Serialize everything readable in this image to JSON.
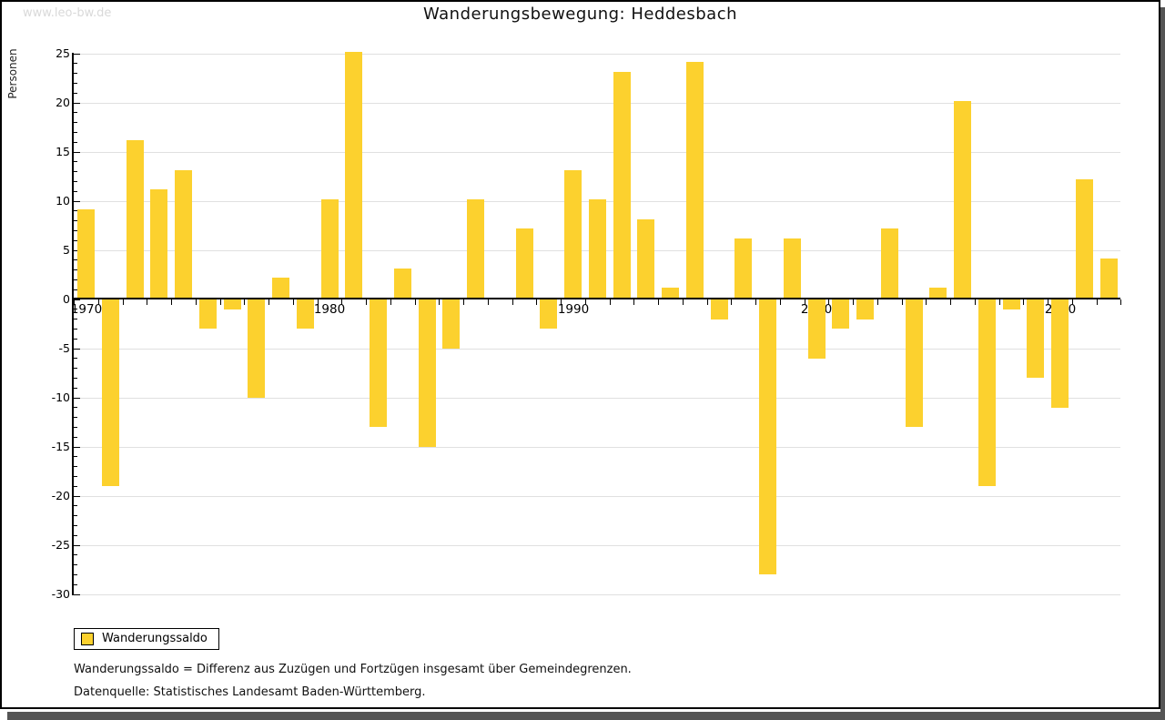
{
  "watermark": "www.leo-bw.de",
  "title": "Wanderungsbewegung: Heddesbach",
  "legend": {
    "label": "Wanderungssaldo"
  },
  "notes": {
    "definition": "Wanderungssaldo = Differenz aus Zuzügen und Fortzügen insgesamt über Gemeindegrenzen.",
    "source": "Datenquelle: Statistisches Landesamt Baden-Württemberg."
  },
  "chart_data": {
    "type": "bar",
    "title": "Wanderungsbewegung: Heddesbach",
    "ylabel": "Personen",
    "xlabel": "",
    "x": [
      1970,
      1971,
      1972,
      1973,
      1974,
      1975,
      1976,
      1977,
      1978,
      1979,
      1980,
      1981,
      1982,
      1983,
      1984,
      1985,
      1986,
      1987,
      1988,
      1989,
      1990,
      1991,
      1992,
      1993,
      1994,
      1995,
      1996,
      1997,
      1998,
      1999,
      2000,
      2001,
      2002,
      2003,
      2004,
      2005,
      2006,
      2007,
      2008,
      2009,
      2010,
      2011,
      2012
    ],
    "series": [
      {
        "name": "Wanderungssaldo",
        "values": [
          9,
          -19,
          16,
          11,
          13,
          -3,
          -1,
          -10,
          2,
          -3,
          10,
          25,
          -13,
          3,
          -15,
          -5,
          10,
          0,
          7,
          -3,
          13,
          10,
          23,
          8,
          1,
          24,
          -2,
          6,
          -28,
          6,
          -6,
          -3,
          -2,
          7,
          -13,
          1,
          20,
          -19,
          -1,
          -8,
          -11,
          12,
          4
        ]
      }
    ],
    "ylim": [
      -30,
      25
    ],
    "ytick_step": 5,
    "ytick_minor_step": 1,
    "xtick_labels": [
      "1970",
      "1980",
      "1990",
      "2000",
      "2010"
    ],
    "grid": true,
    "legend_position": "bottom-left",
    "bar_color": "#FCD12E",
    "grid_color": "#E0E0E0",
    "axis_color": "#000000"
  }
}
